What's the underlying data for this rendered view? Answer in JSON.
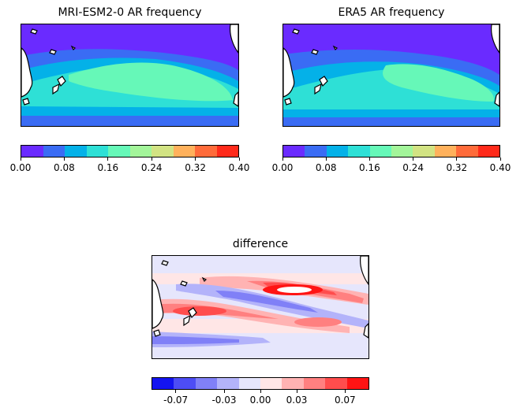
{
  "chart_data": [
    {
      "type": "heatmap",
      "title": "MRI-ESM2-0 AR frequency",
      "colorbar": {
        "levels": [
          0.0,
          0.04,
          0.08,
          0.12,
          0.16,
          0.2,
          0.24,
          0.28,
          0.32,
          0.36,
          0.4
        ],
        "tick_labels": [
          "0.00",
          "0.08",
          "0.16",
          "0.24",
          "0.32",
          "0.40"
        ],
        "colors": [
          "#6a2bff",
          "#3a6cf4",
          "#04b1e8",
          "#2ee0d6",
          "#66f8b8",
          "#a3f59a",
          "#d2e383",
          "#ffb15c",
          "#ff6b3a",
          "#ff2a1a"
        ]
      },
      "bands_by_latitude": [
        "0.00-0.04",
        "0.04-0.08",
        "0.08-0.12",
        "0.12-0.16",
        "0.16-0.20",
        "0.12-0.16",
        "0.08-0.12",
        "0.04-0.08",
        "0.00-0.04"
      ]
    },
    {
      "type": "heatmap",
      "title": "ERA5 AR frequency",
      "colorbar": {
        "levels": [
          0.0,
          0.04,
          0.08,
          0.12,
          0.16,
          0.2,
          0.24,
          0.28,
          0.32,
          0.36,
          0.4
        ],
        "tick_labels": [
          "0.00",
          "0.08",
          "0.16",
          "0.24",
          "0.32",
          "0.40"
        ],
        "colors": [
          "#6a2bff",
          "#3a6cf4",
          "#04b1e8",
          "#2ee0d6",
          "#66f8b8",
          "#a3f59a",
          "#d2e383",
          "#ffb15c",
          "#ff6b3a",
          "#ff2a1a"
        ]
      },
      "bands_by_latitude": [
        "0.00-0.04",
        "0.04-0.08",
        "0.08-0.12",
        "0.12-0.16",
        "0.16-0.20",
        "0.12-0.16",
        "0.08-0.12",
        "0.04-0.08",
        "0.00-0.04"
      ]
    },
    {
      "type": "heatmap",
      "title": "difference",
      "colorbar": {
        "levels": [
          -0.09,
          -0.07,
          -0.05,
          -0.03,
          -0.01,
          0.0,
          0.01,
          0.03,
          0.05,
          0.07,
          0.09
        ],
        "tick_labels": [
          "-0.07",
          "-0.03",
          "0.00",
          "0.03",
          "0.07"
        ],
        "colors": [
          "#1414f0",
          "#4d4df5",
          "#8080f7",
          "#b3b3fa",
          "#e6e6fc",
          "#ffe6e6",
          "#ffb3b3",
          "#ff8080",
          "#ff4d4d",
          "#ff1414"
        ]
      }
    }
  ]
}
